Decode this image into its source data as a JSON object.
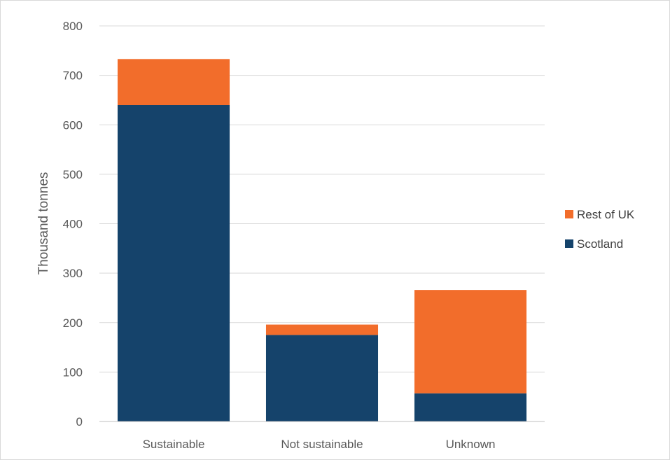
{
  "chart_data": {
    "type": "bar",
    "stacked": true,
    "title": "",
    "xlabel": "",
    "ylabel": "Thousand tonnes",
    "categories": [
      "Sustainable",
      "Not sustainable",
      "Unknown"
    ],
    "series": [
      {
        "name": "Scotland",
        "values": [
          640,
          175,
          57
        ],
        "color": "#15436b"
      },
      {
        "name": "Rest of UK",
        "values": [
          93,
          21,
          209
        ],
        "color": "#f26d2b"
      }
    ],
    "ylim": [
      0,
      800
    ],
    "yticks": [
      0,
      100,
      200,
      300,
      400,
      500,
      600,
      700,
      800
    ],
    "grid": true,
    "legend_position": "right",
    "legend_order": [
      "Rest of UK",
      "Scotland"
    ]
  }
}
